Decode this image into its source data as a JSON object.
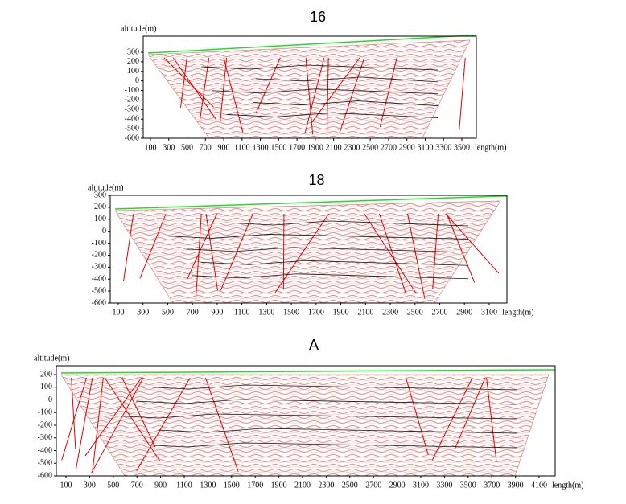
{
  "panels": [
    {
      "title": "16",
      "y_label": "altitude(m)",
      "x_label": "length(m)",
      "y_ticks": [
        "300",
        "200",
        "100",
        "0",
        "-100",
        "-200",
        "-300",
        "-400",
        "-500",
        "-600"
      ],
      "x_ticks": [
        "100",
        "300",
        "500",
        "700",
        "900",
        "1100",
        "1300",
        "1500",
        "1700",
        "1900",
        "2100",
        "2300",
        "2500",
        "2700",
        "2900",
        "3100",
        "3300",
        "3500"
      ]
    },
    {
      "title": "18",
      "y_label": "altitude(m)",
      "x_label": "length(m)",
      "y_ticks": [
        "300",
        "200",
        "100",
        "0",
        "-100",
        "-200",
        "-300",
        "-400",
        "-500",
        "-600"
      ],
      "x_ticks": [
        "100",
        "300",
        "500",
        "700",
        "900",
        "1100",
        "1300",
        "1500",
        "1700",
        "1900",
        "2100",
        "2300",
        "2500",
        "2700",
        "2900",
        "3100"
      ]
    },
    {
      "title": "A",
      "y_label": "altitude(m)",
      "x_label": "length(m)",
      "y_ticks": [
        "200",
        "100",
        "0",
        "-100",
        "-200",
        "-300",
        "-400",
        "-500",
        "-600"
      ],
      "x_ticks": [
        "100",
        "300",
        "500",
        "700",
        "900",
        "1100",
        "1300",
        "1500",
        "1700",
        "1900",
        "2100",
        "2300",
        "2500",
        "2700",
        "2900",
        "3100",
        "3300",
        "3500",
        "3700",
        "3900",
        "4100"
      ]
    }
  ]
}
